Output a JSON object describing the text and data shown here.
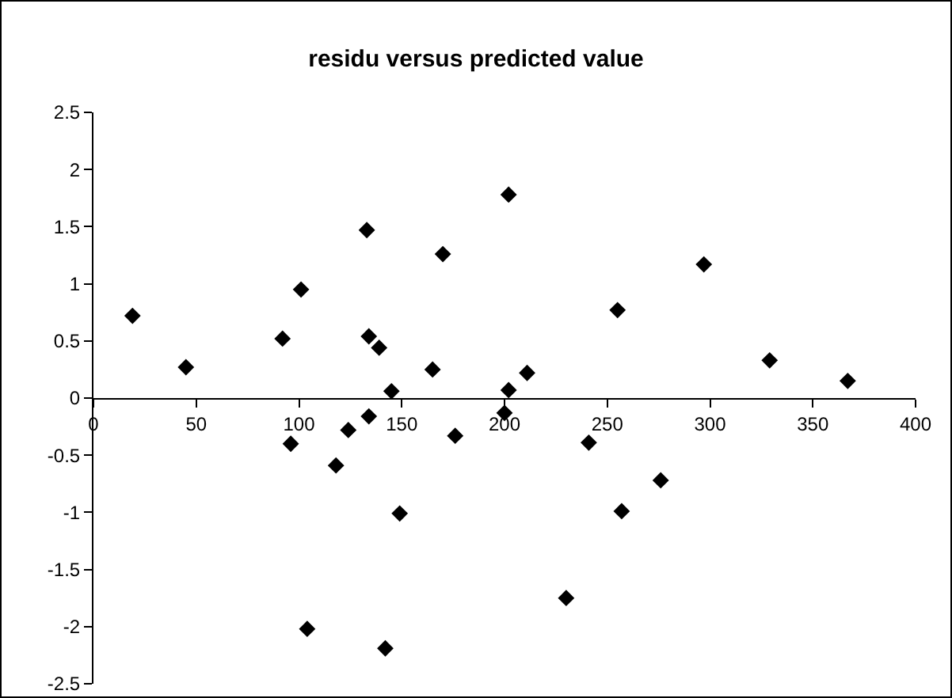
{
  "chart_data": {
    "type": "scatter",
    "title": "residu versus predicted value",
    "x": [
      19,
      45,
      92,
      101,
      133,
      134,
      139,
      145,
      165,
      170,
      202,
      202,
      211,
      255,
      297,
      329,
      367,
      96,
      104,
      118,
      124,
      134,
      142,
      149,
      176,
      200,
      230,
      241,
      257,
      276
    ],
    "values": [
      0.72,
      0.27,
      0.52,
      0.95,
      1.47,
      0.54,
      0.44,
      0.06,
      0.25,
      1.26,
      1.78,
      0.07,
      0.22,
      0.77,
      1.17,
      0.33,
      0.15,
      -0.4,
      -2.02,
      -0.59,
      -0.28,
      -0.16,
      -2.19,
      -1.01,
      -0.33,
      -0.13,
      -1.75,
      -0.39,
      -0.99,
      -0.72
    ],
    "color": "#000000",
    "marker": "diamond",
    "xlim": [
      0,
      400
    ],
    "xticks": [
      0,
      50,
      100,
      150,
      200,
      250,
      300,
      350,
      400
    ],
    "ylim": [
      -2.5,
      2.5
    ],
    "yticks": [
      -2.5,
      -2,
      -1.5,
      -1,
      -0.5,
      0,
      0.5,
      1,
      1.5,
      2,
      2.5
    ]
  }
}
